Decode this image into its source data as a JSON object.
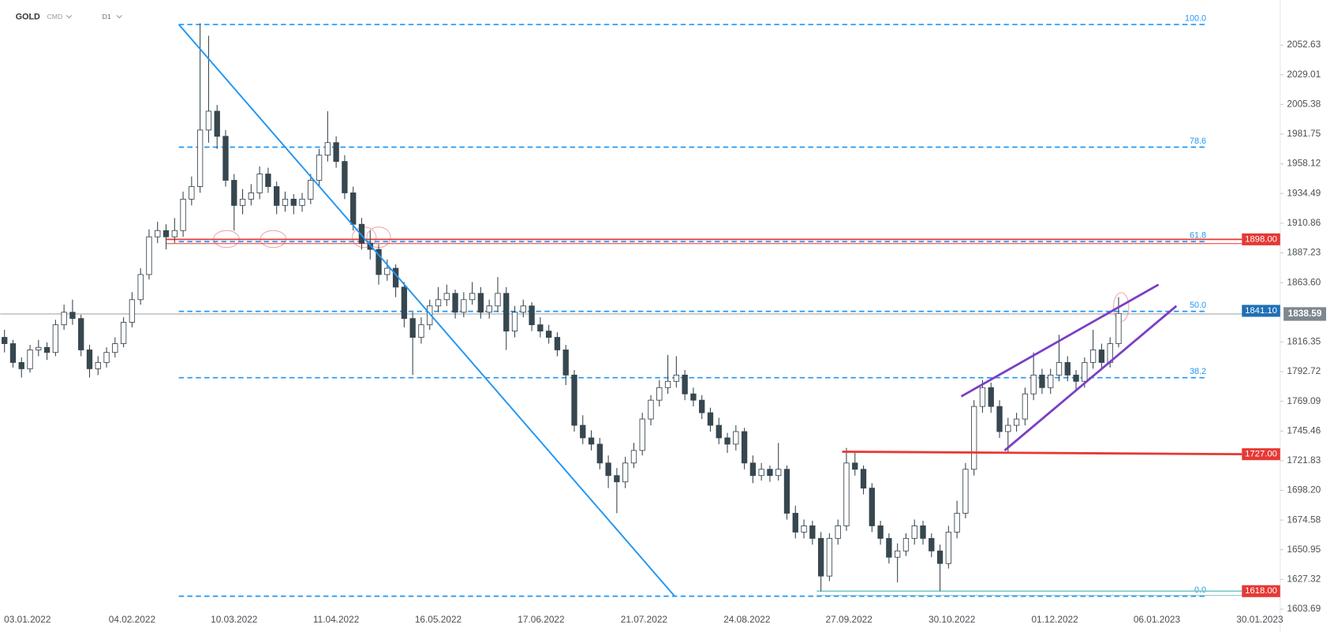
{
  "header": {
    "symbol": "GOLD",
    "market": "CMD",
    "interval": "D1"
  },
  "chart_data": {
    "type": "candlestick",
    "ohlc": [
      [
        1820,
        1826,
        1808,
        1815
      ],
      [
        1815,
        1818,
        1796,
        1800
      ],
      [
        1800,
        1804,
        1788,
        1795
      ],
      [
        1795,
        1814,
        1792,
        1810
      ],
      [
        1810,
        1818,
        1805,
        1812
      ],
      [
        1812,
        1816,
        1802,
        1808
      ],
      [
        1808,
        1834,
        1805,
        1830
      ],
      [
        1830,
        1846,
        1826,
        1840
      ],
      [
        1840,
        1850,
        1830,
        1835
      ],
      [
        1835,
        1838,
        1805,
        1810
      ],
      [
        1810,
        1814,
        1788,
        1795
      ],
      [
        1795,
        1805,
        1790,
        1800
      ],
      [
        1800,
        1812,
        1796,
        1808
      ],
      [
        1808,
        1820,
        1804,
        1815
      ],
      [
        1815,
        1836,
        1812,
        1832
      ],
      [
        1832,
        1856,
        1828,
        1850
      ],
      [
        1850,
        1875,
        1846,
        1870
      ],
      [
        1870,
        1906,
        1866,
        1900
      ],
      [
        1900,
        1912,
        1895,
        1905
      ],
      [
        1905,
        1910,
        1890,
        1900
      ],
      [
        1900,
        1915,
        1895,
        1905
      ],
      [
        1905,
        1936,
        1900,
        1930
      ],
      [
        1930,
        1948,
        1925,
        1940
      ],
      [
        1940,
        2070,
        1935,
        1985
      ],
      [
        1985,
        2060,
        1975,
        2000
      ],
      [
        2000,
        2005,
        1970,
        1980
      ],
      [
        1980,
        1985,
        1940,
        1945
      ],
      [
        1945,
        1950,
        1905,
        1925
      ],
      [
        1925,
        1938,
        1918,
        1930
      ],
      [
        1930,
        1942,
        1925,
        1935
      ],
      [
        1935,
        1956,
        1930,
        1950
      ],
      [
        1950,
        1955,
        1935,
        1940
      ],
      [
        1940,
        1944,
        1918,
        1925
      ],
      [
        1925,
        1936,
        1920,
        1930
      ],
      [
        1930,
        1934,
        1918,
        1925
      ],
      [
        1925,
        1935,
        1920,
        1930
      ],
      [
        1930,
        1950,
        1926,
        1945
      ],
      [
        1945,
        1970,
        1940,
        1965
      ],
      [
        1965,
        2000,
        1960,
        1975
      ],
      [
        1975,
        1980,
        1955,
        1960
      ],
      [
        1960,
        1965,
        1930,
        1935
      ],
      [
        1935,
        1940,
        1905,
        1910
      ],
      [
        1910,
        1915,
        1890,
        1895
      ],
      [
        1895,
        1905,
        1882,
        1890
      ],
      [
        1890,
        1894,
        1862,
        1870
      ],
      [
        1870,
        1882,
        1865,
        1875
      ],
      [
        1875,
        1878,
        1852,
        1860
      ],
      [
        1860,
        1864,
        1828,
        1835
      ],
      [
        1835,
        1840,
        1790,
        1820
      ],
      [
        1820,
        1836,
        1815,
        1830
      ],
      [
        1830,
        1850,
        1826,
        1845
      ],
      [
        1845,
        1860,
        1840,
        1850
      ],
      [
        1850,
        1862,
        1845,
        1855
      ],
      [
        1855,
        1858,
        1835,
        1840
      ],
      [
        1840,
        1856,
        1836,
        1850
      ],
      [
        1850,
        1864,
        1846,
        1855
      ],
      [
        1855,
        1860,
        1835,
        1840
      ],
      [
        1840,
        1850,
        1835,
        1845
      ],
      [
        1845,
        1868,
        1840,
        1855
      ],
      [
        1855,
        1860,
        1810,
        1825
      ],
      [
        1825,
        1845,
        1820,
        1840
      ],
      [
        1840,
        1850,
        1836,
        1845
      ],
      [
        1845,
        1848,
        1825,
        1830
      ],
      [
        1830,
        1836,
        1820,
        1825
      ],
      [
        1825,
        1830,
        1815,
        1820
      ],
      [
        1820,
        1824,
        1805,
        1810
      ],
      [
        1810,
        1814,
        1782,
        1790
      ],
      [
        1790,
        1794,
        1745,
        1750
      ],
      [
        1750,
        1758,
        1735,
        1740
      ],
      [
        1740,
        1746,
        1730,
        1735
      ],
      [
        1735,
        1740,
        1715,
        1720
      ],
      [
        1720,
        1726,
        1700,
        1710
      ],
      [
        1710,
        1716,
        1680,
        1705
      ],
      [
        1705,
        1725,
        1700,
        1720
      ],
      [
        1720,
        1736,
        1716,
        1730
      ],
      [
        1730,
        1760,
        1726,
        1755
      ],
      [
        1755,
        1774,
        1750,
        1770
      ],
      [
        1770,
        1786,
        1765,
        1780
      ],
      [
        1780,
        1806,
        1775,
        1785
      ],
      [
        1785,
        1805,
        1780,
        1790
      ],
      [
        1790,
        1794,
        1770,
        1775
      ],
      [
        1775,
        1780,
        1765,
        1770
      ],
      [
        1770,
        1774,
        1755,
        1760
      ],
      [
        1760,
        1764,
        1745,
        1750
      ],
      [
        1750,
        1756,
        1735,
        1740
      ],
      [
        1740,
        1744,
        1728,
        1735
      ],
      [
        1735,
        1750,
        1730,
        1745
      ],
      [
        1745,
        1748,
        1715,
        1720
      ],
      [
        1720,
        1726,
        1704,
        1710
      ],
      [
        1710,
        1720,
        1706,
        1715
      ],
      [
        1715,
        1718,
        1705,
        1710
      ],
      [
        1710,
        1736,
        1706,
        1715
      ],
      [
        1715,
        1718,
        1675,
        1680
      ],
      [
        1680,
        1686,
        1660,
        1665
      ],
      [
        1665,
        1675,
        1660,
        1670
      ],
      [
        1670,
        1674,
        1655,
        1660
      ],
      [
        1660,
        1665,
        1618,
        1630
      ],
      [
        1630,
        1664,
        1626,
        1660
      ],
      [
        1660,
        1675,
        1655,
        1670
      ],
      [
        1670,
        1732,
        1666,
        1720
      ],
      [
        1720,
        1728,
        1710,
        1715
      ],
      [
        1715,
        1718,
        1695,
        1700
      ],
      [
        1700,
        1704,
        1665,
        1670
      ],
      [
        1670,
        1674,
        1655,
        1660
      ],
      [
        1660,
        1664,
        1640,
        1645
      ],
      [
        1645,
        1656,
        1625,
        1650
      ],
      [
        1650,
        1664,
        1646,
        1660
      ],
      [
        1660,
        1675,
        1655,
        1670
      ],
      [
        1670,
        1674,
        1655,
        1660
      ],
      [
        1660,
        1664,
        1645,
        1650
      ],
      [
        1650,
        1655,
        1618,
        1640
      ],
      [
        1640,
        1670,
        1636,
        1665
      ],
      [
        1665,
        1690,
        1660,
        1680
      ],
      [
        1680,
        1720,
        1676,
        1715
      ],
      [
        1715,
        1770,
        1710,
        1765
      ],
      [
        1765,
        1786,
        1760,
        1780
      ],
      [
        1780,
        1784,
        1760,
        1765
      ],
      [
        1765,
        1770,
        1740,
        1745
      ],
      [
        1745,
        1756,
        1728,
        1750
      ],
      [
        1750,
        1760,
        1745,
        1755
      ],
      [
        1755,
        1780,
        1750,
        1775
      ],
      [
        1775,
        1808,
        1770,
        1790
      ],
      [
        1790,
        1795,
        1775,
        1780
      ],
      [
        1780,
        1795,
        1775,
        1790
      ],
      [
        1790,
        1822,
        1785,
        1800
      ],
      [
        1800,
        1805,
        1785,
        1790
      ],
      [
        1790,
        1794,
        1778,
        1785
      ],
      [
        1785,
        1804,
        1780,
        1800
      ],
      [
        1800,
        1826,
        1795,
        1810
      ],
      [
        1810,
        1815,
        1795,
        1800
      ],
      [
        1800,
        1820,
        1796,
        1815
      ],
      [
        1815,
        1852,
        1812,
        1839
      ]
    ],
    "up_color": "#ffffff",
    "down_color": "#37474f",
    "xlim": [
      -0.5,
      150
    ],
    "xticks": [
      {
        "value": 2.7,
        "label": "03.01.2022"
      },
      {
        "value": 15,
        "label": "04.02.2022"
      },
      {
        "value": 27,
        "label": "10.03.2022"
      },
      {
        "value": 39,
        "label": "11.04.2022"
      },
      {
        "value": 51,
        "label": "16.05.2022"
      },
      {
        "value": 63.1,
        "label": "17.06.2022"
      },
      {
        "value": 75.2,
        "label": "21.07.2022"
      },
      {
        "value": 87.3,
        "label": "24.08.2022"
      },
      {
        "value": 99.3,
        "label": "27.09.2022"
      },
      {
        "value": 111.4,
        "label": "30.10.2022"
      },
      {
        "value": 123.5,
        "label": "01.12.2022"
      },
      {
        "value": 135.5,
        "label": "06.01.2023"
      },
      {
        "value": 147.6,
        "label": "30.01.2023"
      }
    ],
    "ylim": [
      1597,
      2088.5
    ],
    "yticks": [
      2052.63,
      2029.01,
      2005.38,
      1981.75,
      1958.12,
      1934.49,
      1910.86,
      1887.23,
      {
        "value": 1863.6,
        "label": "1863.60"
      },
      1816.35,
      1792.72,
      1769.09,
      1745.46,
      1721.83,
      {
        "value": 1698.2,
        "label": "1698.20"
      },
      1674.58,
      1650.95,
      1627.32,
      1603.69
    ],
    "fib_color": "#2196f3",
    "fib_levels": [
      {
        "value": 2069,
        "label": "100.0"
      },
      {
        "value": 1971.4,
        "label": "78.6"
      },
      {
        "value": 1896.2,
        "label": "61.8"
      },
      {
        "value": 1840.7,
        "label": "50.0"
      },
      {
        "value": 1787.9,
        "label": "38.2"
      },
      {
        "value": 1614,
        "label": "0.0"
      }
    ],
    "fib_start": 20.5,
    "fib_end": 141.5,
    "price_badges": [
      {
        "value": 1898,
        "label": "1898.00",
        "color": "#e53935",
        "line_start": 19,
        "line_color": "#e53935"
      },
      {
        "value": 1841.1,
        "label": "1841.10",
        "color": "#1e6fb5"
      },
      {
        "value": 1727,
        "label": "1727.00",
        "color": "#e53935"
      },
      {
        "value": 1618,
        "label": "1618.00",
        "color": "#e53935",
        "line_start": 95.5,
        "line_color": "#80cbc4"
      }
    ],
    "last_price": {
      "value": 1838.59,
      "label": "1838.59",
      "color": "#7d8790"
    },
    "trend_lines": [
      {
        "x": [
          20.5,
          78.8
        ],
        "y": [
          2069,
          1614
        ],
        "color": "#2196f3"
      },
      {
        "x": [
          112.5,
          135.7
        ],
        "y": [
          1773,
          1862
        ],
        "color": "#7b3fc4"
      },
      {
        "x": [
          117.6,
          137.8
        ],
        "y": [
          1730,
          1845
        ],
        "color": "#7b3fc4"
      },
      {
        "x": [
          98.5,
          145.5
        ],
        "y": [
          1729,
          1727
        ],
        "color": "#e53935"
      }
    ]
  }
}
